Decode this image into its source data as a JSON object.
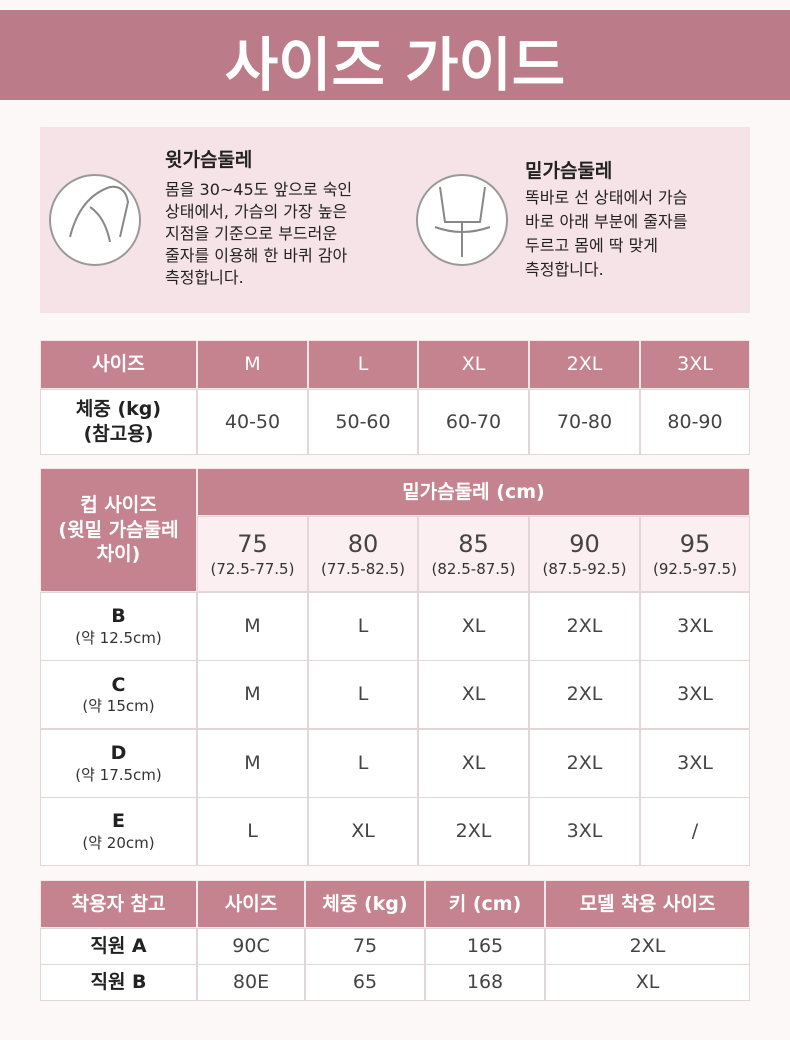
{
  "title": "사이즈 가이드",
  "measure": [
    {
      "title": "윗가슴둘레",
      "lines": [
        "몸을 30~45도 앞으로 숙인",
        "상태에서, 가슴의 가장 높은",
        "지점을 기준으로 부드러운",
        "줄자를 이용해 한 바퀴 감아",
        "측정합니다."
      ]
    },
    {
      "title": "밑가슴둘레",
      "lines": [
        "똑바로 선 상태에서 가슴",
        "바로 아래 부분에 줄자를",
        "두르고 몸에 딱 맞게",
        "측정합니다."
      ]
    }
  ],
  "weight_table": {
    "header": [
      "사이즈",
      "M",
      "L",
      "XL",
      "2XL",
      "3XL"
    ],
    "row_label": [
      "체중 (kg)",
      "(참고용)"
    ],
    "row": [
      "40-50",
      "50-60",
      "60-70",
      "70-80",
      "80-90"
    ]
  },
  "cup_table": {
    "corner": [
      "컵 사이즈",
      "(윗밑 가슴둘레",
      "차이)"
    ],
    "group_header": "밑가슴둘레 (cm)",
    "columns": [
      {
        "size": "75",
        "range": "(72.5-77.5)"
      },
      {
        "size": "80",
        "range": "(77.5-82.5)"
      },
      {
        "size": "85",
        "range": "(82.5-87.5)"
      },
      {
        "size": "90",
        "range": "(87.5-92.5)"
      },
      {
        "size": "95",
        "range": "(92.5-97.5)"
      }
    ],
    "rows": [
      {
        "cup": "B",
        "diff": "(약 12.5cm)",
        "sizes": [
          "M",
          "L",
          "XL",
          "2XL",
          "3XL"
        ]
      },
      {
        "cup": "C",
        "diff": "(약 15cm)",
        "sizes": [
          "M",
          "L",
          "XL",
          "2XL",
          "3XL"
        ]
      },
      {
        "cup": "D",
        "diff": "(약 17.5cm)",
        "sizes": [
          "M",
          "L",
          "XL",
          "2XL",
          "3XL"
        ]
      },
      {
        "cup": "E",
        "diff": "(약 20cm)",
        "sizes": [
          "L",
          "XL",
          "2XL",
          "3XL",
          "/"
        ]
      }
    ]
  },
  "model_table": {
    "header": [
      "착용자 참고",
      "사이즈",
      "체중 (kg)",
      "키 (cm)",
      "모델 착용 사이즈"
    ],
    "rows": [
      [
        "직원 A",
        "90C",
        "75",
        "165",
        "2XL"
      ],
      [
        "직원 B",
        "80E",
        "65",
        "168",
        "XL"
      ]
    ]
  }
}
